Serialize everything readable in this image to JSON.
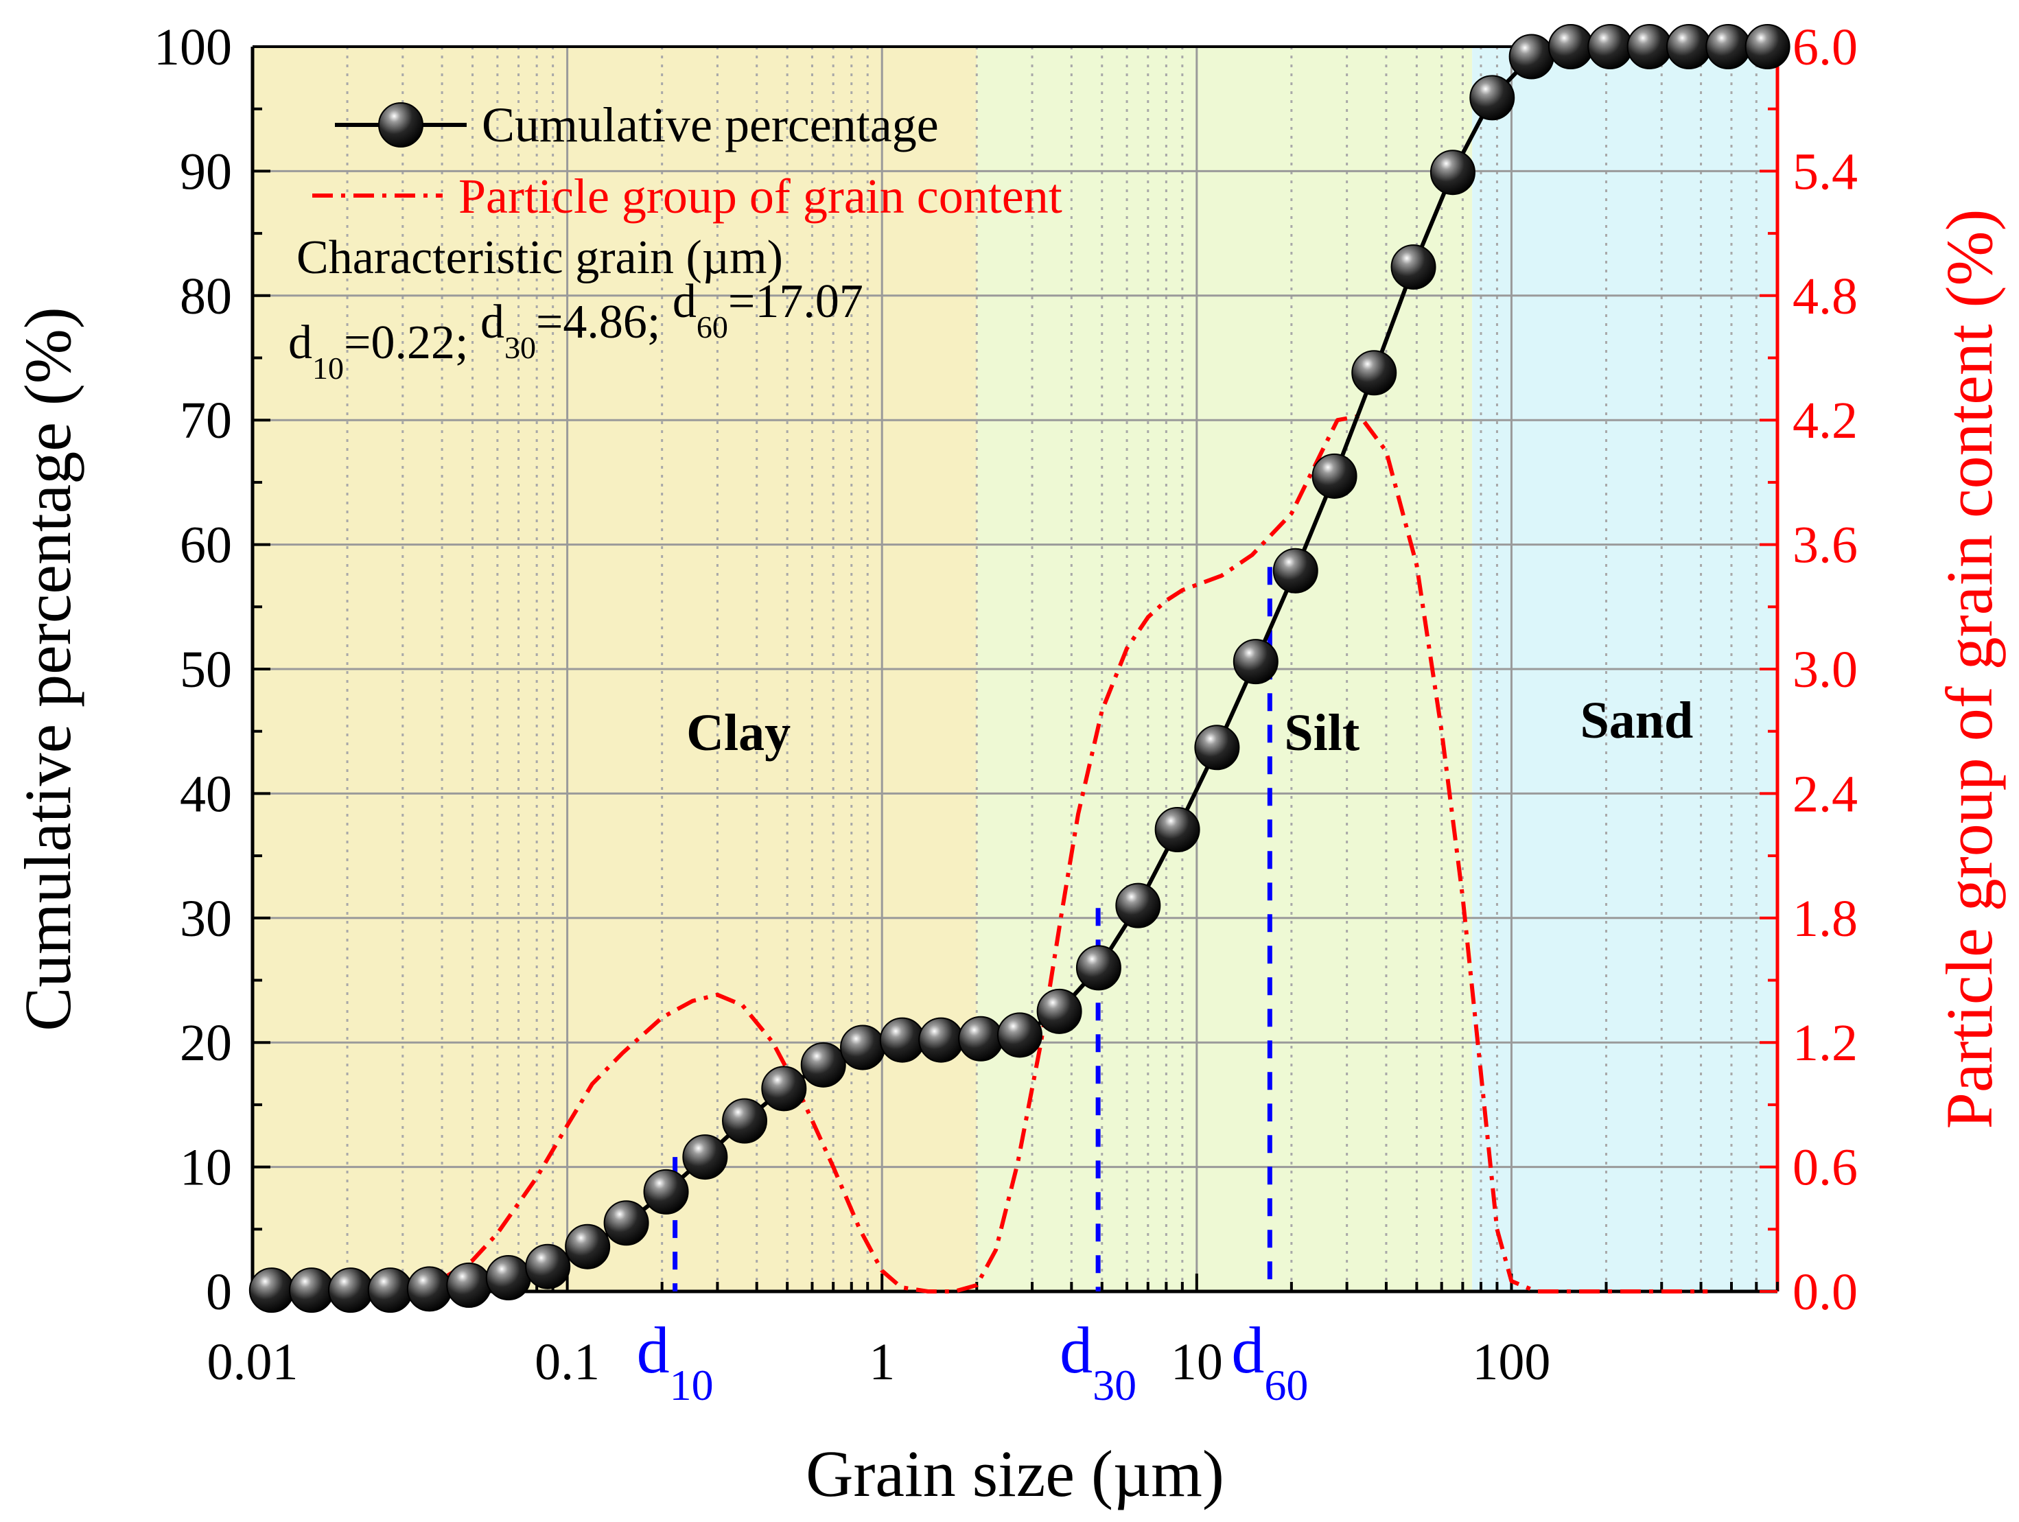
{
  "chart_data": {
    "type": "line",
    "xscale": "log",
    "xlim": [
      0.01,
      700
    ],
    "xlabel": "Grain size (µm)",
    "ylabel_left": "Cumulative percentage (%)",
    "ylabel_right": "Particle group of grain content (%)",
    "ylim_left": [
      0,
      100
    ],
    "ylim_right": [
      0,
      6.0
    ],
    "xticks": [
      0.01,
      0.1,
      1,
      10,
      100
    ],
    "xtick_labels": [
      "0.01",
      "0.1",
      "1",
      "10",
      "100"
    ],
    "yticks_left": [
      "0",
      "10",
      "20",
      "30",
      "40",
      "50",
      "60",
      "70",
      "80",
      "90",
      "100"
    ],
    "yticks_right": [
      "0.0",
      "0.6",
      "1.2",
      "1.8",
      "2.4",
      "3.0",
      "3.6",
      "4.2",
      "4.8",
      "5.4",
      "6.0"
    ],
    "grid": true,
    "legend_position": "top-left",
    "colors": {
      "cumulative": "#000000",
      "content": "#ff0000",
      "markers": "#0000ff",
      "clay_zone": "#f7f0c2",
      "silt_zone": "#eef9d4",
      "sand_zone": "#dcf6fa"
    },
    "zones": [
      {
        "name": "Clay",
        "from": 0.01,
        "to": 2
      },
      {
        "name": "Silt",
        "from": 2,
        "to": 75
      },
      {
        "name": "Sand",
        "from": 75,
        "to": 700
      }
    ],
    "zone_label_positions": [
      {
        "name": "Clay",
        "x": 0.35,
        "y": 43.5
      },
      {
        "name": "Silt",
        "x": 25,
        "y": 43.5
      },
      {
        "name": "Sand",
        "x": 250,
        "y": 44.5
      }
    ],
    "series": [
      {
        "name": "Cumulative percentage",
        "axis": "left",
        "style": "line+markers",
        "x": [
          0.0115,
          0.0154,
          0.0205,
          0.0274,
          0.0365,
          0.0487,
          0.065,
          0.0867,
          0.116,
          0.154,
          0.206,
          0.274,
          0.366,
          0.488,
          0.651,
          0.868,
          1.16,
          1.54,
          2.06,
          2.74,
          3.66,
          4.88,
          6.51,
          8.68,
          11.6,
          15.4,
          20.6,
          27.4,
          36.6,
          48.8,
          65.1,
          86.8,
          115.8,
          154.4,
          205.9,
          274.6,
          366.2,
          488.4,
          651.3
        ],
        "values": [
          0.1,
          0.1,
          0.1,
          0.1,
          0.2,
          0.5,
          1.1,
          2.0,
          3.6,
          5.5,
          8.0,
          10.8,
          13.7,
          16.3,
          18.2,
          19.6,
          20.2,
          20.2,
          20.3,
          20.6,
          22.5,
          26.0,
          31.0,
          37.1,
          43.7,
          50.6,
          57.9,
          65.5,
          73.8,
          82.3,
          89.9,
          95.9,
          99.2,
          100,
          100,
          100,
          100,
          100,
          100
        ]
      },
      {
        "name": "Particle group of grain content",
        "axis": "right",
        "style": "dash-dot",
        "x": [
          0.0115,
          0.03,
          0.04,
          0.05,
          0.06,
          0.08,
          0.1,
          0.12,
          0.15,
          0.2,
          0.25,
          0.3,
          0.36,
          0.45,
          0.55,
          0.7,
          0.85,
          1.0,
          1.15,
          1.4,
          1.7,
          2.0,
          2.3,
          2.7,
          3.2,
          3.7,
          4.2,
          5.0,
          6.0,
          7.0,
          8.0,
          9.0,
          12.0,
          15.0,
          20.0,
          25.0,
          28.0,
          33.0,
          40.0,
          50.0,
          60.0,
          70.0,
          80.0,
          90.0,
          100.0,
          120.0,
          160.0,
          300.0,
          420.0
        ],
        "values": [
          0.0,
          0.01,
          0.06,
          0.15,
          0.28,
          0.55,
          0.8,
          1.0,
          1.15,
          1.32,
          1.4,
          1.43,
          1.38,
          1.2,
          0.95,
          0.6,
          0.3,
          0.1,
          0.02,
          0.0,
          0.0,
          0.03,
          0.2,
          0.62,
          1.2,
          1.8,
          2.3,
          2.8,
          3.1,
          3.25,
          3.33,
          3.38,
          3.45,
          3.55,
          3.75,
          4.05,
          4.2,
          4.22,
          4.05,
          3.5,
          2.7,
          1.9,
          1.05,
          0.3,
          0.05,
          0.0,
          0.0,
          0.0,
          0.0
        ]
      }
    ],
    "characteristic_grains": [
      {
        "name": "d10",
        "base": "d",
        "sub": "10",
        "value": 0.22,
        "cumulative": 10.8
      },
      {
        "name": "d30",
        "base": "d",
        "sub": "30",
        "value": 4.86,
        "cumulative": 30.8
      },
      {
        "name": "d60",
        "base": "d",
        "sub": "60",
        "value": 17.07,
        "cumulative": 58.2
      }
    ],
    "annotation": {
      "heading": "Characteristic grain (µm)",
      "parts": [
        {
          "base": "d",
          "sub": "10",
          "rest": "=0.22; "
        },
        {
          "base": "d",
          "sub": "30",
          "rest": "=4.86; "
        },
        {
          "base": "d",
          "sub": "60",
          "rest": "=17.07"
        }
      ]
    }
  }
}
